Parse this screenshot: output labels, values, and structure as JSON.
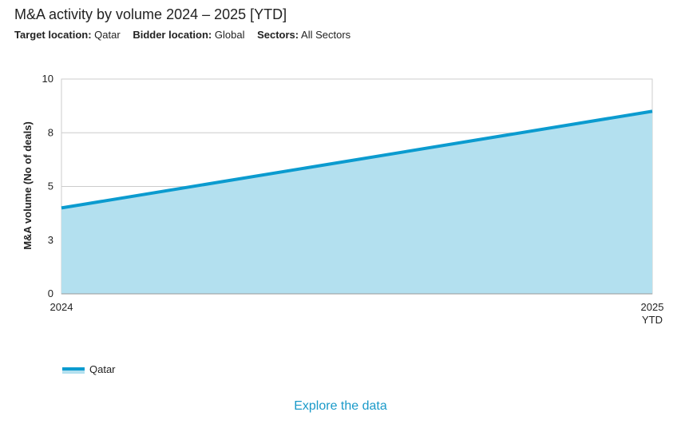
{
  "header": {
    "title": "M&A activity by volume 2024 – 2025 [YTD]",
    "filters": [
      {
        "label": "Target location:",
        "value": "Qatar"
      },
      {
        "label": "Bidder location:",
        "value": "Global"
      },
      {
        "label": "Sectors:",
        "value": "All Sectors"
      }
    ]
  },
  "chart_data": {
    "type": "area",
    "x": [
      "2024",
      "2025 YTD"
    ],
    "x_tick_labels": [
      [
        "2024"
      ],
      [
        "2025",
        "YTD"
      ]
    ],
    "series": [
      {
        "name": "Qatar",
        "values": [
          4,
          8.5
        ]
      }
    ],
    "ylabel": "M&A volume (No of deals)",
    "xlabel": "",
    "ylim": [
      0,
      10
    ],
    "y_tick_values": [
      0,
      2.5,
      5,
      7.5,
      10
    ],
    "y_tick_labels": [
      "0",
      "3",
      "5",
      "8",
      "10"
    ],
    "grid": true,
    "legend_position": "bottom-left",
    "colors": {
      "line": "#0b9bcf",
      "fill": "#b3e0ef",
      "grid": "#cccccc"
    }
  },
  "legend": {
    "label": "Qatar"
  },
  "footer": {
    "explore_label": "Explore the data"
  }
}
